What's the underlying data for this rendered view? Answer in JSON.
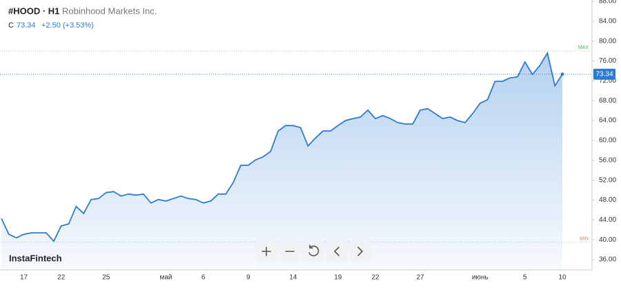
{
  "header": {
    "symbol": "#HOOD · H1",
    "name": "Robinhood Markets Inc.",
    "close_label": "C",
    "change": "+2.50 (+3.53%)"
  },
  "logo": "InstaFintech",
  "chart_data": {
    "type": "area",
    "color": "#2b7bd3",
    "categories": [
      null,
      null,
      null,
      "17",
      null,
      null,
      null,
      null,
      "22",
      null,
      null,
      null,
      null,
      null,
      "25",
      null,
      null,
      null,
      null,
      null,
      null,
      null,
      "май",
      null,
      null,
      null,
      null,
      "6",
      null,
      null,
      null,
      null,
      null,
      "9",
      null,
      null,
      null,
      null,
      null,
      "14",
      null,
      null,
      null,
      null,
      null,
      "19",
      null,
      null,
      null,
      null,
      "22",
      null,
      null,
      null,
      null,
      null,
      "27",
      null,
      null,
      null,
      null,
      null,
      null,
      null,
      "июнь",
      null,
      null,
      null,
      null,
      null,
      "5",
      null,
      null,
      null,
      null,
      "10"
    ],
    "values": [
      44.3,
      41.1,
      40.4,
      41.1,
      41.4,
      41.4,
      41.4,
      39.7,
      42.8,
      43.2,
      46.7,
      45.3,
      48.1,
      48.3,
      49.5,
      49.7,
      48.8,
      49.2,
      49.0,
      49.2,
      47.4,
      48.1,
      47.8,
      48.3,
      48.8,
      48.3,
      48.1,
      47.4,
      47.8,
      49.2,
      49.2,
      51.5,
      55.0,
      55.0,
      56.1,
      56.7,
      57.8,
      61.9,
      63.0,
      63.0,
      62.6,
      58.9,
      60.5,
      61.9,
      61.9,
      63.0,
      64.0,
      64.4,
      64.7,
      66.1,
      64.4,
      65.0,
      64.4,
      63.6,
      63.3,
      63.3,
      66.1,
      66.4,
      65.4,
      64.4,
      64.7,
      64.0,
      63.6,
      65.4,
      67.5,
      68.2,
      71.9,
      71.9,
      72.6,
      72.8,
      75.8,
      73.3,
      75.1,
      77.6,
      71.0,
      73.34
    ],
    "ylim": [
      36,
      88
    ],
    "yticks": [
      {
        "value": 36,
        "label": "36.00"
      },
      {
        "value": 40,
        "label": "40.00"
      },
      {
        "value": 44,
        "label": "44.00"
      },
      {
        "value": 48,
        "label": "48.00"
      },
      {
        "value": 52,
        "label": "52.00"
      },
      {
        "value": 56,
        "label": "56.00"
      },
      {
        "value": 60,
        "label": "60.00"
      },
      {
        "value": 64,
        "label": "64.00"
      },
      {
        "value": 68,
        "label": "68.00"
      },
      {
        "value": 72,
        "label": "72.00"
      },
      {
        "value": 76,
        "label": "76.00"
      },
      {
        "value": 80,
        "label": "80.00"
      },
      {
        "value": 84,
        "label": "84.00"
      },
      {
        "value": 88,
        "label": "88.00"
      }
    ],
    "price_line": 73.34,
    "max_line": {
      "value": 78,
      "label": "MAX"
    },
    "min_line": {
      "value": 39.5,
      "label": "MIN"
    }
  }
}
